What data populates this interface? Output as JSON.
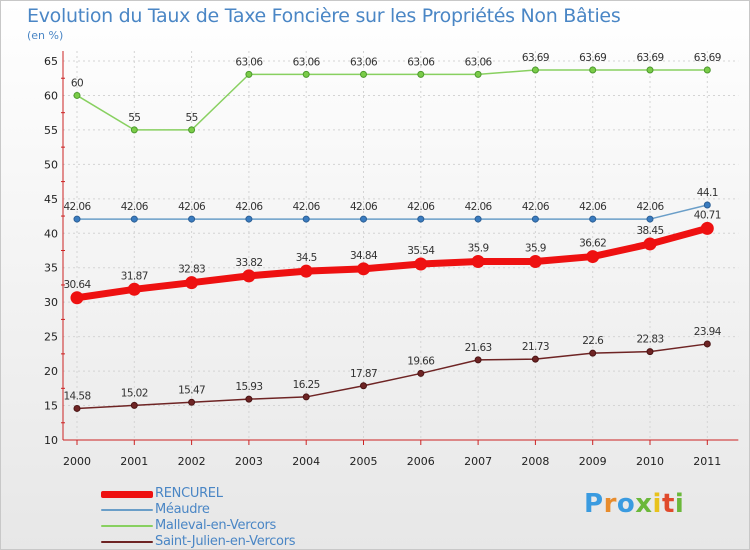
{
  "title": "Evolution du Taux de Taxe Foncière sur les Propriétés Non Bâties",
  "unit": "(en %)",
  "brand": {
    "letters": [
      "P",
      "r",
      "o",
      "x",
      "i",
      "t",
      "i"
    ],
    "colors": [
      "#3a9be0",
      "#e88c2c",
      "#3a9be0",
      "#6bb83a",
      "#e8c21c",
      "#e04a2c",
      "#6bb83a"
    ]
  },
  "chart_data": {
    "type": "line",
    "title": "Evolution du Taux de Taxe Foncière sur les Propriétés Non Bâties",
    "ylabel": "(en %)",
    "xlabel": "",
    "ylim": [
      10,
      65
    ],
    "yticks": [
      "10",
      "15",
      "20",
      "25",
      "30",
      "35",
      "40",
      "45",
      "50",
      "55",
      "60",
      "65"
    ],
    "categories": [
      "2000",
      "2001",
      "2002",
      "2003",
      "2004",
      "2005",
      "2006",
      "2007",
      "2008",
      "2009",
      "2010",
      "2011"
    ],
    "series": [
      {
        "name": "RENCUREL",
        "color": "#ee1111",
        "values": [
          30.64,
          31.87,
          32.83,
          33.82,
          34.5,
          34.84,
          35.54,
          35.9,
          35.9,
          36.62,
          38.45,
          40.71
        ],
        "labels": [
          "30.64",
          "31.87",
          "32.83",
          "33.82",
          "34.5",
          "34.84",
          "35.54",
          "35.9",
          "35.9",
          "36.62",
          "38.45",
          "40.71"
        ]
      },
      {
        "name": "Méaudre",
        "color": "#6a9ec8",
        "values": [
          42.06,
          42.06,
          42.06,
          42.06,
          42.06,
          42.06,
          42.06,
          42.06,
          42.06,
          42.06,
          42.06,
          44.1
        ],
        "labels": [
          "42.06",
          "42.06",
          "42.06",
          "42.06",
          "42.06",
          "42.06",
          "42.06",
          "42.06",
          "42.06",
          "42.06",
          "42.06",
          "44.1"
        ]
      },
      {
        "name": "Malleval-en-Vercors",
        "color": "#88d060",
        "values": [
          60,
          55,
          55,
          63.06,
          63.06,
          63.06,
          63.06,
          63.06,
          63.69,
          63.69,
          63.69,
          63.69
        ],
        "labels": [
          "60",
          "55",
          "55",
          "63.06",
          "63.06",
          "63.06",
          "63.06",
          "63.06",
          "63.69",
          "63.69",
          "63.69",
          "63.69"
        ]
      },
      {
        "name": "Saint-Julien-en-Vercors",
        "color": "#6e2424",
        "values": [
          14.58,
          15.02,
          15.47,
          15.93,
          16.25,
          17.87,
          19.66,
          21.63,
          21.73,
          22.6,
          22.83,
          23.94
        ],
        "labels": [
          "14.58",
          "15.02",
          "15.47",
          "15.93",
          "16.25",
          "17.87",
          "19.66",
          "21.63",
          "21.73",
          "22.6",
          "22.83",
          "23.94"
        ]
      }
    ],
    "grid": true,
    "legend": "bottom-left"
  }
}
